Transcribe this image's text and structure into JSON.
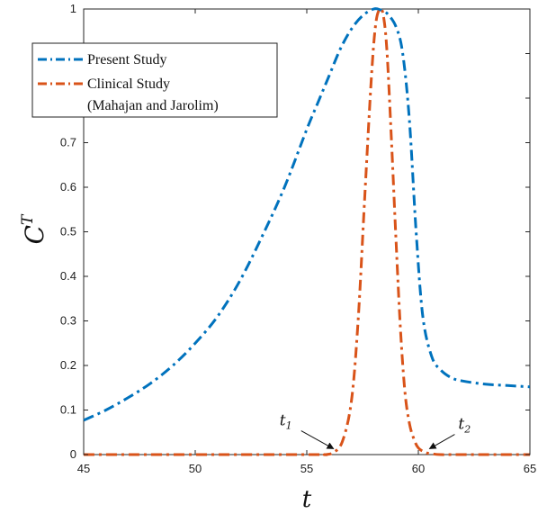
{
  "chart_data": {
    "type": "line",
    "xlabel": "t",
    "ylabel": "C",
    "ylabel_sup": "T",
    "xlim": [
      45,
      65
    ],
    "ylim": [
      0,
      1
    ],
    "xticks": [
      "45",
      "50",
      "55",
      "60",
      "65"
    ],
    "yticks": [
      "0",
      "0.1",
      "0.2",
      "0.3",
      "0.4",
      "0.5",
      "0.6",
      "0.7",
      "0.8",
      "0.9",
      "1"
    ],
    "grid": false,
    "legend_position": "top-left",
    "series": [
      {
        "name": "Present Study",
        "color": "#0072BD",
        "style": "dash-dot",
        "x": [
          45,
          46,
          47,
          48,
          49,
          50,
          51,
          52,
          53,
          54,
          55,
          55.5,
          56,
          56.5,
          57,
          57.5,
          58,
          58.3,
          58.6,
          59,
          59.3,
          59.6,
          59.9,
          60.2,
          60.6,
          61,
          61.5,
          62,
          63,
          64,
          65
        ],
        "y": [
          0.077,
          0.1,
          0.128,
          0.16,
          0.2,
          0.25,
          0.31,
          0.39,
          0.49,
          0.6,
          0.73,
          0.79,
          0.85,
          0.91,
          0.955,
          0.985,
          1.0,
          0.998,
          0.99,
          0.96,
          0.9,
          0.75,
          0.5,
          0.31,
          0.22,
          0.19,
          0.172,
          0.165,
          0.158,
          0.155,
          0.152
        ]
      },
      {
        "name": "Clinical Study",
        "name_line2": "(Mahajan and Jarolim)",
        "color": "#D95319",
        "style": "dash-dot",
        "x": [
          45,
          55,
          55.8,
          56.2,
          56.6,
          57,
          57.3,
          57.6,
          57.9,
          58.1,
          58.3,
          58.45,
          58.6,
          58.8,
          59,
          59.2,
          59.4,
          59.6,
          59.8,
          60,
          60.3,
          60.6,
          61,
          62,
          65
        ],
        "y": [
          0,
          0,
          0.0,
          0.005,
          0.03,
          0.12,
          0.3,
          0.58,
          0.85,
          0.97,
          1.0,
          0.98,
          0.9,
          0.7,
          0.48,
          0.28,
          0.14,
          0.07,
          0.035,
          0.015,
          0.005,
          0.002,
          0.0,
          0,
          0
        ]
      }
    ],
    "annotations": [
      {
        "label": "t",
        "sub": "1",
        "x": 56.2,
        "y": 0.005
      },
      {
        "label": "t",
        "sub": "2",
        "x": 60.5,
        "y": 0.005
      }
    ]
  }
}
